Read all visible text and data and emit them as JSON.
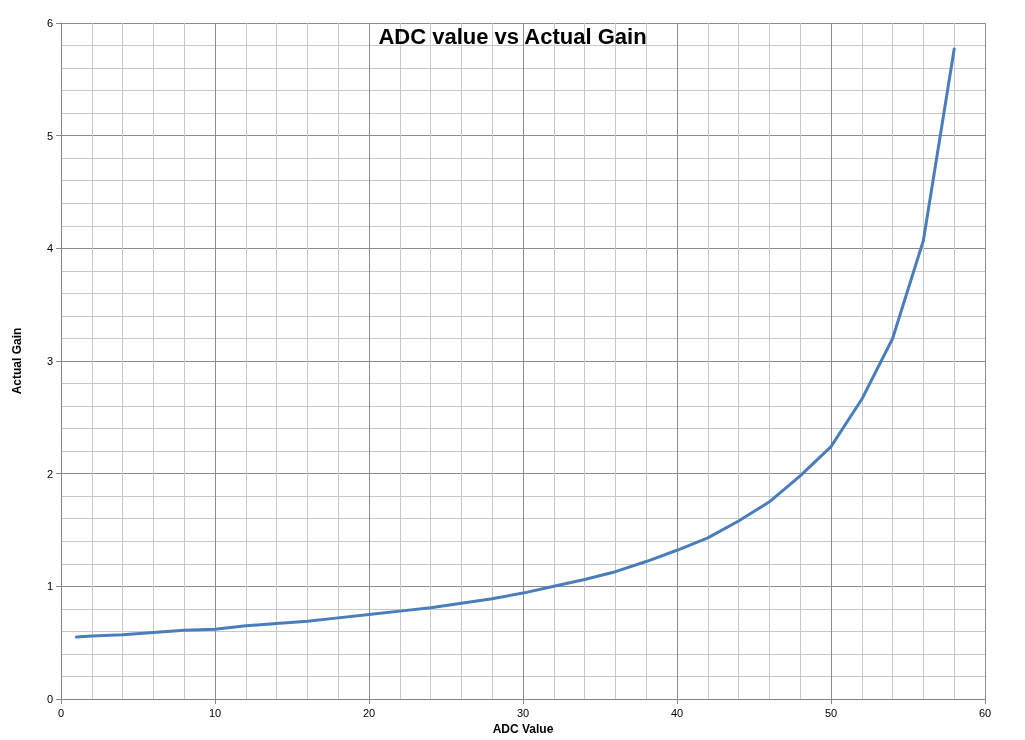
{
  "chart_data": {
    "type": "line",
    "title": "ADC value vs Actual Gain",
    "xlabel": "ADC Value",
    "ylabel": "Actual Gain",
    "x": [
      1,
      2,
      4,
      6,
      8,
      10,
      12,
      14,
      16,
      18,
      20,
      22,
      24,
      26,
      28,
      30,
      32,
      34,
      36,
      38,
      40,
      42,
      44,
      46,
      48,
      50,
      52,
      54,
      56,
      58
    ],
    "series": [
      {
        "color": "#4a7ebb",
        "values": [
          0.55,
          0.56,
          0.57,
          0.59,
          0.61,
          0.62,
          0.65,
          0.67,
          0.69,
          0.72,
          0.75,
          0.78,
          0.81,
          0.85,
          0.89,
          0.94,
          1.0,
          1.06,
          1.13,
          1.22,
          1.32,
          1.43,
          1.58,
          1.75,
          1.98,
          2.24,
          2.66,
          3.2,
          4.07,
          5.77
        ]
      }
    ],
    "xlim": [
      0,
      60
    ],
    "xticks": [
      0,
      10,
      20,
      30,
      40,
      50,
      60
    ],
    "ylim": [
      0,
      6
    ],
    "yticks": [
      0,
      1,
      2,
      3,
      4,
      5,
      6
    ],
    "grid": true,
    "marker": "none",
    "line_style": "solid"
  }
}
